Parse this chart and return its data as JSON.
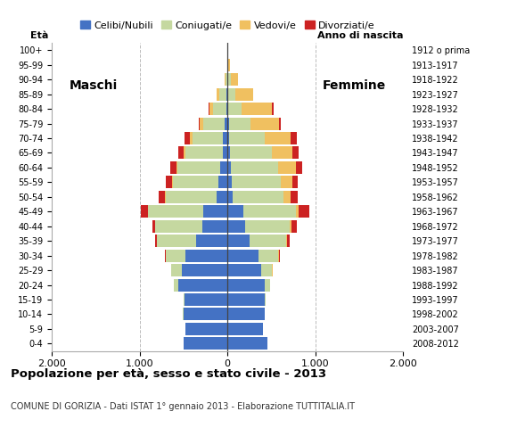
{
  "age_groups": [
    "0-4",
    "5-9",
    "10-14",
    "15-19",
    "20-24",
    "25-29",
    "30-34",
    "35-39",
    "40-44",
    "45-49",
    "50-54",
    "55-59",
    "60-64",
    "65-69",
    "70-74",
    "75-79",
    "80-84",
    "85-89",
    "90-94",
    "95-99",
    "100+"
  ],
  "birth_years": [
    "2008-2012",
    "2003-2007",
    "1998-2002",
    "1993-1997",
    "1988-1992",
    "1983-1987",
    "1978-1982",
    "1973-1977",
    "1968-1972",
    "1963-1967",
    "1958-1962",
    "1953-1957",
    "1948-1952",
    "1943-1947",
    "1938-1942",
    "1933-1937",
    "1928-1932",
    "1923-1927",
    "1918-1922",
    "1913-1917",
    "1912 o prima"
  ],
  "males": {
    "celibe": [
      500,
      480,
      500,
      490,
      560,
      520,
      480,
      360,
      290,
      280,
      120,
      100,
      80,
      55,
      50,
      30,
      15,
      10,
      5,
      2,
      2
    ],
    "coniugato": [
      2,
      2,
      5,
      10,
      50,
      120,
      220,
      440,
      530,
      620,
      580,
      520,
      490,
      420,
      350,
      250,
      150,
      80,
      15,
      3,
      2
    ],
    "vedovo": [
      0,
      0,
      0,
      0,
      0,
      0,
      1,
      2,
      3,
      5,
      8,
      10,
      15,
      20,
      30,
      35,
      40,
      30,
      10,
      2,
      0
    ],
    "divorziato": [
      0,
      0,
      0,
      0,
      2,
      5,
      10,
      20,
      30,
      80,
      80,
      70,
      70,
      65,
      60,
      15,
      10,
      5,
      2,
      0,
      0
    ]
  },
  "females": {
    "celibe": [
      450,
      400,
      420,
      420,
      420,
      380,
      350,
      250,
      200,
      180,
      60,
      50,
      35,
      25,
      20,
      15,
      10,
      8,
      5,
      2,
      2
    ],
    "coniugato": [
      2,
      2,
      5,
      15,
      60,
      130,
      230,
      420,
      510,
      600,
      580,
      560,
      540,
      480,
      400,
      250,
      150,
      80,
      30,
      5,
      2
    ],
    "vedovo": [
      0,
      0,
      0,
      0,
      0,
      1,
      2,
      5,
      15,
      30,
      80,
      130,
      200,
      230,
      300,
      320,
      350,
      200,
      80,
      20,
      5
    ],
    "divorziato": [
      0,
      0,
      0,
      0,
      2,
      5,
      10,
      30,
      60,
      120,
      80,
      60,
      70,
      70,
      70,
      20,
      15,
      5,
      2,
      0,
      0
    ]
  },
  "colors": {
    "celibe": "#4472C4",
    "coniugato": "#c5d8a0",
    "vedovo": "#F0C060",
    "divorziato": "#CC2222"
  },
  "xlim": 2000,
  "title": "Popolazione per età, sesso e stato civile - 2013",
  "subtitle": "COMUNE DI GORIZIA - Dati ISTAT 1° gennaio 2013 - Elaborazione TUTTITALIA.IT",
  "legend_labels": [
    "Celibi/Nubili",
    "Coniugati/e",
    "Vedovi/e",
    "Divorziati/e"
  ],
  "xlabel_left": "Maschi",
  "xlabel_right": "Femmine",
  "ylabel_left": "Età",
  "ylabel_right": "Anno di nascita",
  "background_color": "#ffffff",
  "grid_color": "#bbbbbb"
}
